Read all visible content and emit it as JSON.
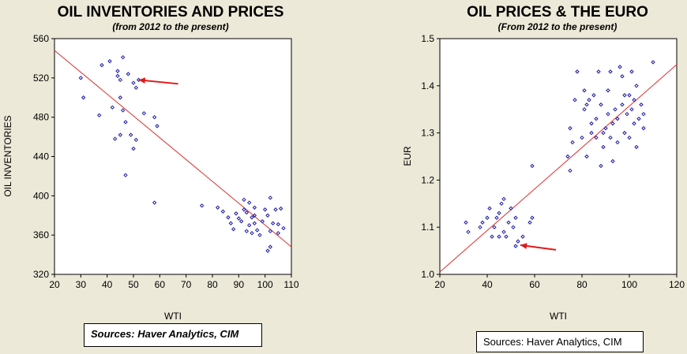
{
  "colors": {
    "background": "#ece9d8",
    "plot_bg": "#ffffff",
    "points": "#1a1aa6",
    "fit_line": "#e03030",
    "arrow": "#e01a1a"
  },
  "charts": [
    {
      "title": "OIL INVENTORIES AND PRICES",
      "subtitle": "(from 2012 to the present)",
      "source": "Sources:  Haver Analytics, CIM"
    },
    {
      "title": "OIL PRICES & THE EURO",
      "subtitle": "(From 2012 to the present)",
      "source": "Sources:  Haver Analytics, CIM"
    }
  ],
  "chart_data": [
    {
      "type": "scatter",
      "title": "OIL INVENTORIES AND PRICES",
      "subtitle": "(from 2012 to the present)",
      "xlabel": "WTI",
      "ylabel": "OIL INVENTORIES",
      "xlim": [
        20,
        110
      ],
      "ylim": [
        320,
        560
      ],
      "xticks": [
        20,
        30,
        40,
        50,
        60,
        70,
        80,
        90,
        100,
        110
      ],
      "yticks": [
        320,
        360,
        400,
        440,
        480,
        520,
        560
      ],
      "grid": false,
      "points": [
        [
          30,
          520
        ],
        [
          31,
          500
        ],
        [
          37,
          482
        ],
        [
          38,
          533
        ],
        [
          41,
          537
        ],
        [
          42,
          490
        ],
        [
          43,
          458
        ],
        [
          44,
          522
        ],
        [
          44,
          527
        ],
        [
          45,
          500
        ],
        [
          45,
          518
        ],
        [
          45,
          462
        ],
        [
          46,
          487
        ],
        [
          46,
          541
        ],
        [
          47,
          421
        ],
        [
          47,
          475
        ],
        [
          48,
          524
        ],
        [
          49,
          462
        ],
        [
          50,
          515
        ],
        [
          50,
          448
        ],
        [
          51,
          457
        ],
        [
          51,
          510
        ],
        [
          52,
          518
        ],
        [
          54,
          484
        ],
        [
          58,
          480
        ],
        [
          59,
          471
        ],
        [
          58,
          393
        ],
        [
          76,
          390
        ],
        [
          82,
          388
        ],
        [
          84,
          384
        ],
        [
          86,
          378
        ],
        [
          87,
          372
        ],
        [
          88,
          366
        ],
        [
          89,
          382
        ],
        [
          90,
          377
        ],
        [
          91,
          374
        ],
        [
          92,
          396
        ],
        [
          92,
          386
        ],
        [
          93,
          383
        ],
        [
          93,
          364
        ],
        [
          94,
          393
        ],
        [
          94,
          370
        ],
        [
          95,
          378
        ],
        [
          95,
          362
        ],
        [
          96,
          388
        ],
        [
          96,
          380
        ],
        [
          96,
          372
        ],
        [
          97,
          365
        ],
        [
          98,
          360
        ],
        [
          99,
          374
        ],
        [
          100,
          386
        ],
        [
          101,
          380
        ],
        [
          101,
          344
        ],
        [
          102,
          398
        ],
        [
          102,
          364
        ],
        [
          102,
          348
        ],
        [
          103,
          372
        ],
        [
          104,
          386
        ],
        [
          105,
          371
        ],
        [
          105,
          362
        ],
        [
          106,
          387
        ],
        [
          107,
          367
        ]
      ],
      "fit_line": [
        [
          20,
          548
        ],
        [
          110,
          348
        ]
      ],
      "annotations": [
        {
          "type": "arrow",
          "points_to": [
            52,
            518
          ],
          "from": [
            67,
            514
          ]
        }
      ]
    },
    {
      "type": "scatter",
      "title": "OIL PRICES & THE EURO",
      "subtitle": "(From 2012 to the present)",
      "xlabel": "WTI",
      "ylabel": "EUR",
      "xlim": [
        20,
        120
      ],
      "ylim": [
        1.0,
        1.5
      ],
      "xticks": [
        20,
        40,
        60,
        80,
        100,
        120
      ],
      "yticks": [
        1.0,
        1.1,
        1.2,
        1.3,
        1.4,
        1.5
      ],
      "grid": false,
      "points": [
        [
          31,
          1.11
        ],
        [
          32,
          1.09
        ],
        [
          37,
          1.1
        ],
        [
          38,
          1.11
        ],
        [
          40,
          1.12
        ],
        [
          41,
          1.14
        ],
        [
          42,
          1.08
        ],
        [
          43,
          1.1
        ],
        [
          44,
          1.12
        ],
        [
          45,
          1.13
        ],
        [
          45,
          1.08
        ],
        [
          46,
          1.15
        ],
        [
          47,
          1.09
        ],
        [
          47,
          1.16
        ],
        [
          48,
          1.08
        ],
        [
          49,
          1.11
        ],
        [
          50,
          1.14
        ],
        [
          51,
          1.1
        ],
        [
          52,
          1.12
        ],
        [
          52,
          1.06
        ],
        [
          53,
          1.07
        ],
        [
          55,
          1.08
        ],
        [
          58,
          1.11
        ],
        [
          59,
          1.12
        ],
        [
          59,
          1.23
        ],
        [
          74,
          1.25
        ],
        [
          75,
          1.22
        ],
        [
          75,
          1.31
        ],
        [
          76,
          1.28
        ],
        [
          77,
          1.37
        ],
        [
          78,
          1.43
        ],
        [
          80,
          1.29
        ],
        [
          81,
          1.35
        ],
        [
          81,
          1.39
        ],
        [
          82,
          1.25
        ],
        [
          82,
          1.36
        ],
        [
          83,
          1.37
        ],
        [
          84,
          1.3
        ],
        [
          84,
          1.32
        ],
        [
          85,
          1.38
        ],
        [
          86,
          1.29
        ],
        [
          86,
          1.33
        ],
        [
          87,
          1.43
        ],
        [
          88,
          1.23
        ],
        [
          88,
          1.36
        ],
        [
          89,
          1.27
        ],
        [
          89,
          1.3
        ],
        [
          90,
          1.31
        ],
        [
          91,
          1.39
        ],
        [
          91,
          1.34
        ],
        [
          92,
          1.29
        ],
        [
          92,
          1.43
        ],
        [
          93,
          1.32
        ],
        [
          93,
          1.24
        ],
        [
          94,
          1.35
        ],
        [
          95,
          1.33
        ],
        [
          95,
          1.28
        ],
        [
          96,
          1.44
        ],
        [
          97,
          1.42
        ],
        [
          97,
          1.36
        ],
        [
          98,
          1.3
        ],
        [
          98,
          1.38
        ],
        [
          99,
          1.34
        ],
        [
          100,
          1.29
        ],
        [
          100,
          1.38
        ],
        [
          101,
          1.43
        ],
        [
          101,
          1.35
        ],
        [
          102,
          1.37
        ],
        [
          102,
          1.32
        ],
        [
          103,
          1.4
        ],
        [
          103,
          1.27
        ],
        [
          104,
          1.33
        ],
        [
          105,
          1.36
        ],
        [
          106,
          1.31
        ],
        [
          106,
          1.34
        ],
        [
          110,
          1.45
        ]
      ],
      "fit_line": [
        [
          20,
          1.005
        ],
        [
          120,
          1.445
        ]
      ],
      "annotations": [
        {
          "type": "arrow",
          "points_to": [
            54,
            1.062
          ],
          "from": [
            69,
            1.052
          ]
        }
      ]
    }
  ]
}
